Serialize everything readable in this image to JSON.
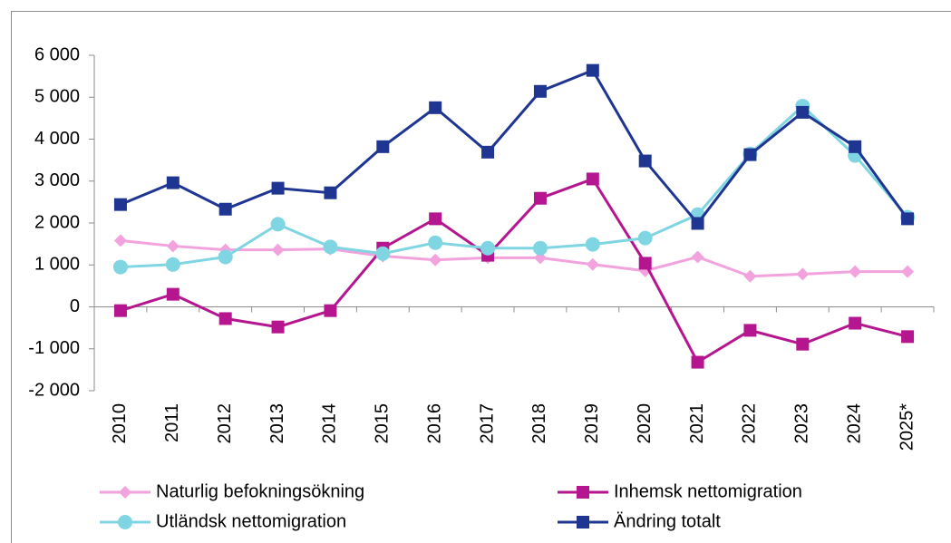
{
  "chart_data": {
    "type": "line",
    "categories": [
      "2010",
      "2011",
      "2012",
      "2013",
      "2014",
      "2015",
      "2016",
      "2017",
      "2018",
      "2019",
      "2020",
      "2021",
      "2022",
      "2023",
      "2024",
      "2025*"
    ],
    "series": [
      {
        "name": "Naturlig befokningsökning",
        "color": "#f2a2dc",
        "marker": "diamond",
        "values": [
          1580,
          1450,
          1360,
          1360,
          1380,
          1210,
          1120,
          1170,
          1170,
          1010,
          860,
          1190,
          730,
          780,
          840,
          840
        ]
      },
      {
        "name": "Inhemsk nettomigration",
        "color": "#b5168f",
        "marker": "square",
        "values": [
          -90,
          300,
          -280,
          -480,
          -90,
          1400,
          2100,
          1230,
          2590,
          3050,
          1040,
          -1320,
          -560,
          -890,
          -390,
          -710
        ]
      },
      {
        "name": "Utländsk nettomigration",
        "color": "#7fd6e2",
        "marker": "circle",
        "values": [
          950,
          1010,
          1190,
          1970,
          1430,
          1270,
          1530,
          1400,
          1400,
          1490,
          1640,
          2200,
          3650,
          4790,
          3610,
          2140
        ]
      },
      {
        "name": "Ändring totalt",
        "color": "#1f3592",
        "marker": "square",
        "values": [
          2440,
          2960,
          2330,
          2830,
          2720,
          3820,
          4750,
          3690,
          5140,
          5640,
          3480,
          1990,
          3630,
          4640,
          3820,
          2100
        ]
      }
    ],
    "ylim": [
      -2000,
      6000
    ],
    "yticks": [
      {
        "value": -2000,
        "label": "-2 000"
      },
      {
        "value": -1000,
        "label": "-1 000"
      },
      0,
      {
        "value": 1000,
        "label": "1 000"
      },
      {
        "value": 2000,
        "label": "2 000"
      },
      {
        "value": 3000,
        "label": "3 000"
      },
      {
        "value": 4000,
        "label": "4 000"
      },
      {
        "value": 5000,
        "label": "5 000"
      },
      {
        "value": 6000,
        "label": "6 000"
      }
    ],
    "grid": false
  }
}
